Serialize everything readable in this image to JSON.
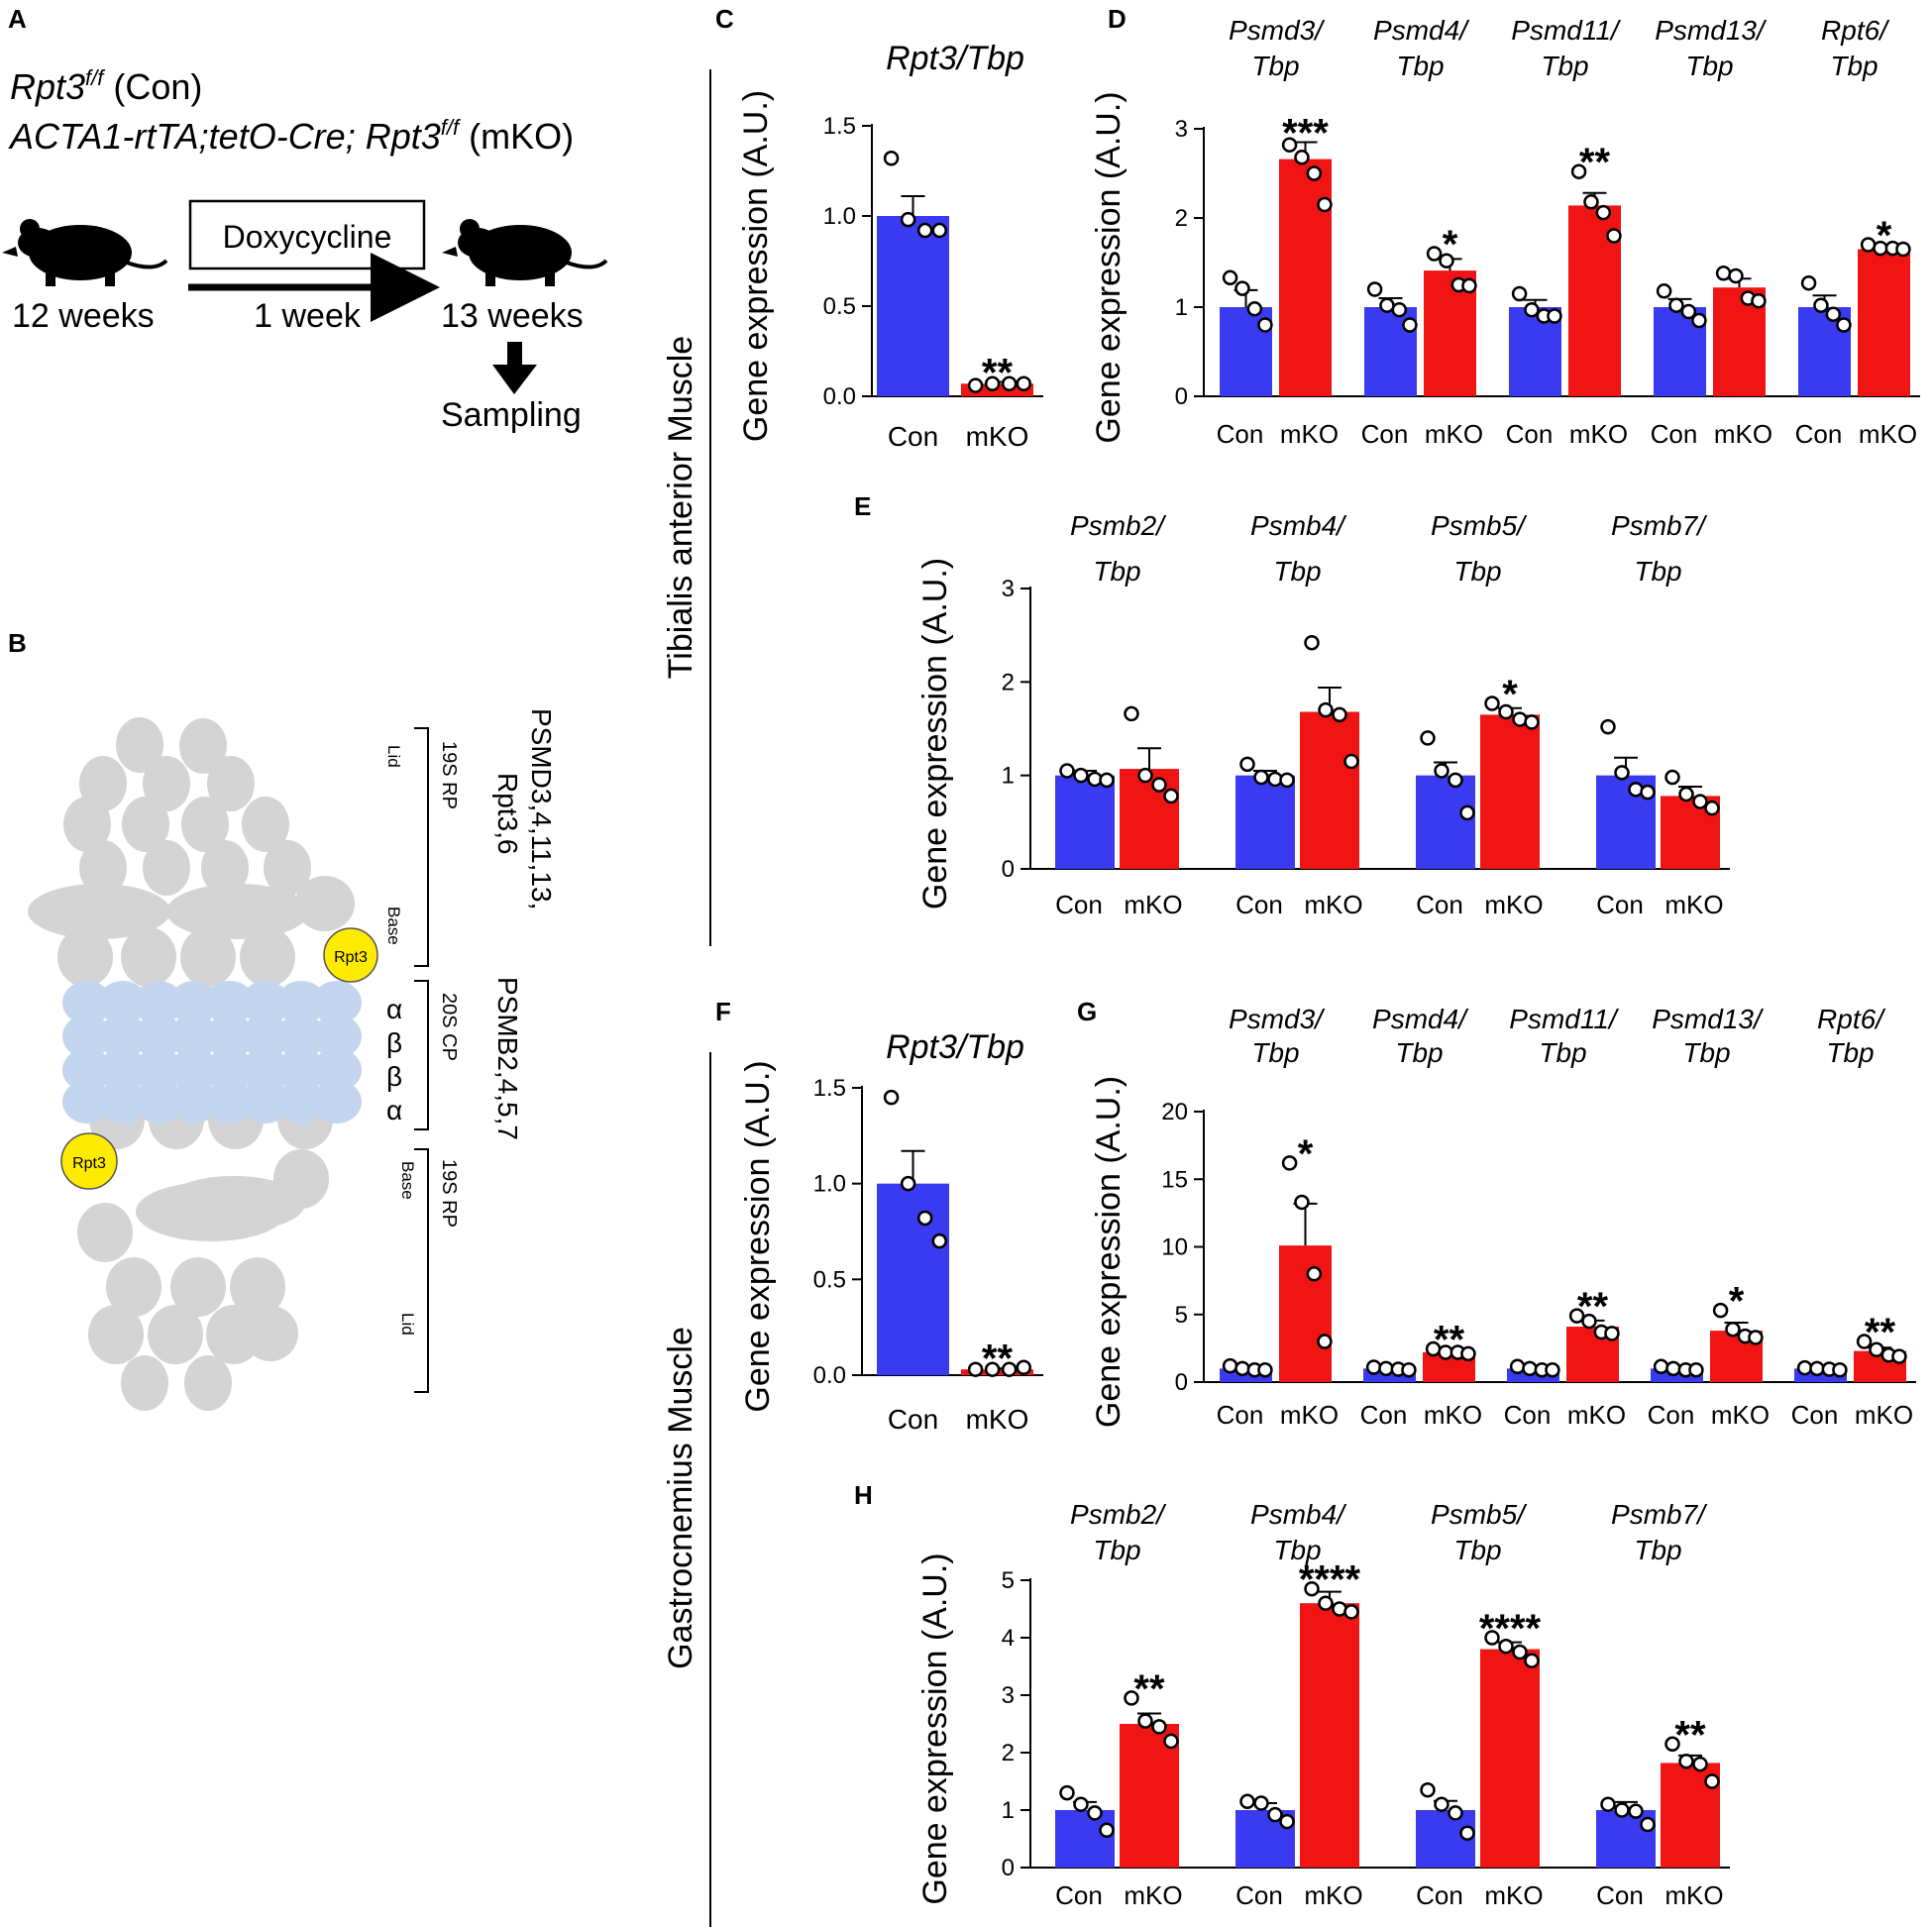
{
  "colors": {
    "con": "#3a3af0",
    "mko": "#f01414",
    "lobe": "#d4d4d4",
    "core": "#c4d6ef",
    "rpt3": "#ffeb00"
  },
  "panel_a": {
    "letter": "A",
    "line1_gene": "Rpt3",
    "line1_sup": "f/f",
    "line1_tag": " (Con)",
    "line2_gene": "ACTA1-rtTA;tetO-Cre; Rpt3",
    "line2_sup": "f/f",
    "line2_tag": " (mKO)",
    "drug": "Doxycycline",
    "start_age": "12 weeks",
    "duration": "1 week",
    "end_age": "13 weeks",
    "sampling": "Sampling"
  },
  "panel_b": {
    "letter": "B",
    "top_group": "19S RP",
    "lid": "Lid",
    "base": "Base",
    "top_proteins_1": "PSMD3,4,11,13,",
    "top_proteins_2": "Rpt3,6",
    "core_group": "20S CP",
    "core_proteins": "PSMB2,4,5,7",
    "alpha": "α",
    "beta": "β",
    "rpt3": "Rpt3"
  },
  "side_labels": {
    "ta": "Tibialis anterior Muscle",
    "gastro": "Gastrocnemius Muscle"
  },
  "chart_data": [
    {
      "panel": "C",
      "type": "bar",
      "ylabel": "Gene expression (A.U.)",
      "ylim": [
        0,
        1.5
      ],
      "yticks": [
        "0.0",
        "0.5",
        "1.0",
        "1.5"
      ],
      "groups": [
        {
          "title1": "Rpt3/Tbp",
          "title2": "",
          "con": 1.0,
          "con_err": 0.11,
          "mko": 0.07,
          "mko_err": 0.01,
          "sig": "**",
          "con_pts": [
            1.32,
            0.98,
            0.92,
            0.92
          ],
          "mko_pts": [
            0.06,
            0.07,
            0.07,
            0.07
          ]
        }
      ],
      "categories": [
        "Con",
        "mKO"
      ]
    },
    {
      "panel": "D",
      "type": "bar",
      "ylabel": "Gene expression (A.U.)",
      "ylim": [
        0,
        3
      ],
      "yticks": [
        "0",
        "1",
        "2",
        "3"
      ],
      "groups": [
        {
          "title1": "Psmd3/",
          "title2": "Tbp",
          "con": 1.0,
          "con_err": 0.19,
          "mko": 2.66,
          "mko_err": 0.19,
          "sig": "***",
          "con_pts": [
            1.33,
            1.21,
            0.98,
            0.8
          ],
          "mko_pts": [
            2.82,
            2.68,
            2.5,
            2.15
          ]
        },
        {
          "title1": "Psmd4/",
          "title2": "Tbp",
          "con": 1.0,
          "con_err": 0.1,
          "mko": 1.41,
          "mko_err": 0.13,
          "sig": "*",
          "con_pts": [
            1.2,
            1.02,
            0.97,
            0.8
          ],
          "mko_pts": [
            1.6,
            1.52,
            1.25,
            1.24
          ]
        },
        {
          "title1": "Psmd11/",
          "title2": "Tbp",
          "con": 1.0,
          "con_err": 0.08,
          "mko": 2.14,
          "mko_err": 0.14,
          "sig": "**",
          "con_pts": [
            1.15,
            0.97,
            0.9,
            0.9
          ],
          "mko_pts": [
            2.52,
            2.18,
            2.06,
            1.8
          ]
        },
        {
          "title1": "Psmd13/",
          "title2": "Tbp",
          "con": 1.0,
          "con_err": 0.09,
          "mko": 1.22,
          "mko_err": 0.1,
          "sig": "",
          "con_pts": [
            1.18,
            1.02,
            0.95,
            0.85
          ],
          "mko_pts": [
            1.38,
            1.35,
            1.1,
            1.07
          ]
        },
        {
          "title1": "Rpt6/",
          "title2": "Tbp",
          "con": 1.0,
          "con_err": 0.13,
          "mko": 1.65,
          "mko_err": 0.03,
          "sig": "*",
          "con_pts": [
            1.27,
            1.02,
            0.92,
            0.8
          ],
          "mko_pts": [
            1.7,
            1.66,
            1.66,
            1.65
          ]
        }
      ],
      "categories": [
        "Con",
        "mKO"
      ]
    },
    {
      "panel": "E",
      "type": "bar",
      "ylabel": "Gene expression (A.U.)",
      "ylim": [
        0,
        3
      ],
      "yticks": [
        "0",
        "1",
        "2",
        "3"
      ],
      "groups": [
        {
          "title1": "Psmb2/",
          "title2": "Tbp",
          "con": 1.0,
          "con_err": 0.05,
          "mko": 1.07,
          "mko_err": 0.22,
          "sig": "",
          "con_pts": [
            1.05,
            1.0,
            0.96,
            0.95
          ],
          "mko_pts": [
            1.66,
            1.0,
            0.9,
            0.78
          ]
        },
        {
          "title1": "Psmb4/",
          "title2": "Tbp",
          "con": 1.0,
          "con_err": 0.05,
          "mko": 1.68,
          "mko_err": 0.26,
          "sig": "",
          "con_pts": [
            1.12,
            0.98,
            0.96,
            0.95
          ],
          "mko_pts": [
            2.42,
            1.7,
            1.65,
            1.15
          ]
        },
        {
          "title1": "Psmb5/",
          "title2": "Tbp",
          "con": 1.0,
          "con_err": 0.14,
          "mko": 1.65,
          "mko_err": 0.07,
          "sig": "*",
          "con_pts": [
            1.4,
            1.05,
            0.95,
            0.6
          ],
          "mko_pts": [
            1.77,
            1.68,
            1.6,
            1.57
          ]
        },
        {
          "title1": "Psmb7/",
          "title2": "Tbp",
          "con": 1.0,
          "con_err": 0.19,
          "mko": 0.78,
          "mko_err": 0.1,
          "sig": "",
          "con_pts": [
            1.52,
            1.03,
            0.85,
            0.82
          ],
          "mko_pts": [
            0.98,
            0.8,
            0.72,
            0.65
          ]
        }
      ],
      "categories": [
        "Con",
        "mKO"
      ]
    },
    {
      "panel": "F",
      "type": "bar",
      "ylabel": "Gene expression (A.U.)",
      "ylim": [
        0,
        1.5
      ],
      "yticks": [
        "0.0",
        "0.5",
        "1.0",
        "1.5"
      ],
      "groups": [
        {
          "title1": "Rpt3/Tbp",
          "title2": "",
          "con": 1.0,
          "con_err": 0.17,
          "mko": 0.03,
          "mko_err": 0.005,
          "sig": "**",
          "con_pts": [
            1.45,
            1.0,
            0.82,
            0.7
          ],
          "mko_pts": [
            0.03,
            0.03,
            0.03,
            0.04
          ]
        }
      ],
      "categories": [
        "Con",
        "mKO"
      ]
    },
    {
      "panel": "G",
      "type": "bar",
      "ylabel": "Gene expression (A.U.)",
      "ylim": [
        0,
        20
      ],
      "yticks": [
        "0",
        "5",
        "10",
        "15",
        "20"
      ],
      "groups": [
        {
          "title1": "Psmd3/",
          "title2": "Tbp",
          "con": 1.0,
          "con_err": 0.15,
          "mko": 10.1,
          "mko_err": 3.1,
          "sig": "*",
          "con_pts": [
            1.2,
            1.0,
            0.9,
            0.9
          ],
          "mko_pts": [
            16.2,
            13.3,
            8.0,
            3.0
          ]
        },
        {
          "title1": "Psmd4/",
          "title2": "Tbp",
          "con": 1.0,
          "con_err": 0.1,
          "mko": 2.2,
          "mko_err": 0.12,
          "sig": "**",
          "con_pts": [
            1.1,
            1.0,
            0.95,
            0.9
          ],
          "mko_pts": [
            2.45,
            2.2,
            2.2,
            2.1
          ]
        },
        {
          "title1": "Psmd11/",
          "title2": "Tbp",
          "con": 1.0,
          "con_err": 0.1,
          "mko": 4.1,
          "mko_err": 0.45,
          "sig": "**",
          "con_pts": [
            1.15,
            1.0,
            0.9,
            0.9
          ],
          "mko_pts": [
            4.9,
            4.5,
            3.7,
            3.6
          ]
        },
        {
          "title1": "Psmd13/",
          "title2": "Tbp",
          "con": 1.0,
          "con_err": 0.1,
          "mko": 3.8,
          "mko_err": 0.6,
          "sig": "*",
          "con_pts": [
            1.15,
            1.0,
            0.9,
            0.9
          ],
          "mko_pts": [
            5.3,
            3.9,
            3.4,
            3.3
          ]
        },
        {
          "title1": "Rpt6/",
          "title2": "Tbp",
          "con": 1.0,
          "con_err": 0.08,
          "mko": 2.3,
          "mko_err": 0.25,
          "sig": "**",
          "con_pts": [
            1.05,
            1.0,
            0.95,
            0.9
          ],
          "mko_pts": [
            3.0,
            2.4,
            2.0,
            1.9
          ]
        }
      ],
      "categories": [
        "Con",
        "mKO"
      ]
    },
    {
      "panel": "H",
      "type": "bar",
      "ylabel": "Gene expression (A.U.)",
      "ylim": [
        0,
        5
      ],
      "yticks": [
        "0",
        "1",
        "2",
        "3",
        "4",
        "5"
      ],
      "groups": [
        {
          "title1": "Psmb2/",
          "title2": "Tbp",
          "con": 1.0,
          "con_err": 0.14,
          "mko": 2.5,
          "mko_err": 0.18,
          "sig": "**",
          "con_pts": [
            1.3,
            1.1,
            0.95,
            0.65
          ],
          "mko_pts": [
            2.95,
            2.55,
            2.45,
            2.2
          ]
        },
        {
          "title1": "Psmb4/",
          "title2": "Tbp",
          "con": 1.0,
          "con_err": 0.12,
          "mko": 4.6,
          "mko_err": 0.2,
          "sig": "****",
          "con_pts": [
            1.15,
            1.12,
            0.92,
            0.8
          ],
          "mko_pts": [
            4.85,
            4.6,
            4.5,
            4.45
          ]
        },
        {
          "title1": "Psmb5/",
          "title2": "Tbp",
          "con": 1.0,
          "con_err": 0.16,
          "mko": 3.8,
          "mko_err": 0.12,
          "sig": "****",
          "con_pts": [
            1.35,
            1.1,
            0.95,
            0.6
          ],
          "mko_pts": [
            4.0,
            3.85,
            3.75,
            3.6
          ]
        },
        {
          "title1": "Psmb7/",
          "title2": "Tbp",
          "con": 1.0,
          "con_err": 0.14,
          "mko": 1.82,
          "mko_err": 0.13,
          "sig": "**",
          "con_pts": [
            1.1,
            1.0,
            0.98,
            0.75
          ],
          "mko_pts": [
            2.15,
            1.85,
            1.8,
            1.5
          ]
        }
      ],
      "categories": [
        "Con",
        "mKO"
      ]
    }
  ]
}
